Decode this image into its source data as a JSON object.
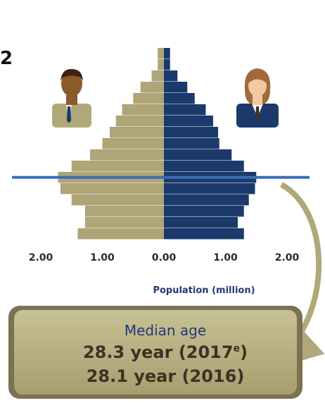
{
  "page_label": "2",
  "chart_data": {
    "type": "bar",
    "orientation": "horizontal-population-pyramid",
    "age_groups": 17,
    "series": [
      {
        "name": "",
        "side": "left",
        "color": "#aea578",
        "values": [
          1.4,
          1.28,
          1.28,
          1.5,
          1.68,
          1.72,
          1.5,
          1.2,
          1.0,
          0.88,
          0.78,
          0.68,
          0.5,
          0.38,
          0.2,
          0.1,
          0.1
        ]
      },
      {
        "name": "",
        "side": "right",
        "color": "#1b3a6b",
        "values": [
          1.3,
          1.2,
          1.3,
          1.38,
          1.48,
          1.5,
          1.3,
          1.1,
          0.9,
          0.88,
          0.8,
          0.68,
          0.5,
          0.38,
          0.22,
          0.1,
          0.1
        ]
      }
    ],
    "x_ticks": [
      "2.00",
      "1.00",
      "0.00",
      "1.00",
      "2.00"
    ],
    "x_range": [
      -2,
      2
    ],
    "xlabel": "Population (million)",
    "median_line_group": 5,
    "median_line_color": "#3b6db3"
  },
  "median_box": {
    "label": "Median age",
    "line1_prefix": "28.3 year (2017",
    "line1_sup": "e",
    "line1_suffix": ")",
    "line2": "28.1 year (2016)",
    "fill": "#b5ad80"
  },
  "icons": {
    "left": "male-avatar-icon",
    "right": "female-avatar-icon"
  }
}
